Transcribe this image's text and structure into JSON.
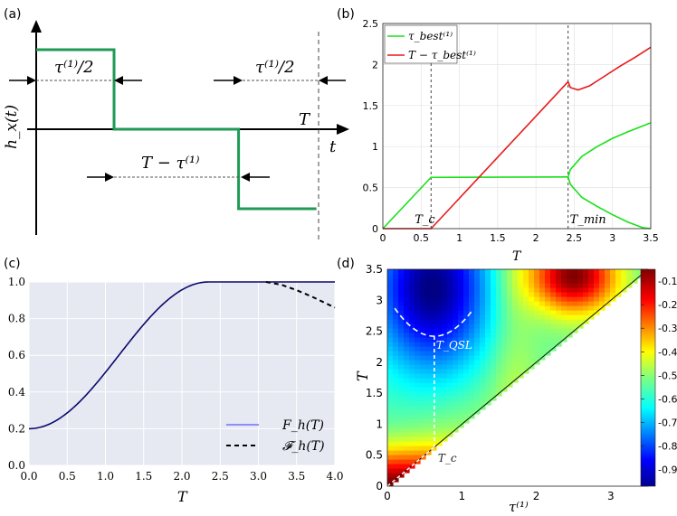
{
  "panels": {
    "a": {
      "label": "(a)"
    },
    "b": {
      "label": "(b)"
    },
    "c": {
      "label": "(c)"
    },
    "d": {
      "label": "(d)"
    }
  },
  "colors": {
    "green": "#1f9a55",
    "bright_green": "#19e019",
    "red": "#e61b1b",
    "navy": "#0a0a6a",
    "grid_bg": "#e6e8f2"
  },
  "chart_data": [
    {
      "id": "a",
      "type": "line",
      "title": "",
      "ylabel": "h_x(t)",
      "xlabel": "t",
      "annotations": {
        "top_left": "τ⁽¹⁾/2",
        "top_right": "τ⁽¹⁾/2",
        "T_label": "T",
        "middle": "T − τ⁽¹⁾"
      },
      "pulse": [
        {
          "t": 0,
          "h": 1
        },
        {
          "t": 0.5,
          "h": 1
        },
        {
          "t": 0.5,
          "h": 0
        },
        {
          "t": 1.3,
          "h": 0
        },
        {
          "t": 1.3,
          "h": -1
        },
        {
          "t": 1.8,
          "h": -1
        }
      ],
      "T_marker": 1.8
    },
    {
      "id": "b",
      "type": "line",
      "xlabel": "T",
      "ylabel": "",
      "xlim": [
        0,
        3.5
      ],
      "ylim": [
        0,
        2.5
      ],
      "xticks": [
        0,
        0.5,
        1,
        1.5,
        2,
        2.5,
        3,
        3.5
      ],
      "xtick_labels": [
        "0",
        "0.5",
        "1",
        "1.5",
        "2",
        "2.5",
        "3",
        "3.5"
      ],
      "yticks": [
        0,
        0.5,
        1,
        1.5,
        2,
        2.5
      ],
      "ytick_labels": [
        "0",
        "0.5",
        "1",
        "1.5",
        "2",
        "2.5"
      ],
      "legend": [
        "τ_best⁽¹⁾",
        "T − τ_best⁽¹⁾"
      ],
      "legend_pos": "top-left",
      "vlines": [
        {
          "x": 0.63,
          "label": "T_c"
        },
        {
          "x": 2.42,
          "label": "T_min"
        }
      ],
      "series": [
        {
          "name": "tau_best",
          "color": "green",
          "x": [
            0,
            0.63,
            2.42
          ],
          "y": [
            0,
            0.625,
            0.63
          ]
        },
        {
          "name": "tau_best_upper",
          "color": "green",
          "x": [
            2.42,
            2.45,
            2.6,
            2.8,
            3.0,
            3.2,
            3.5
          ],
          "y": [
            0.63,
            0.72,
            0.88,
            1.0,
            1.1,
            1.18,
            1.29
          ]
        },
        {
          "name": "tau_best_lower",
          "color": "green",
          "x": [
            2.42,
            2.45,
            2.6,
            2.8,
            3.0,
            3.2,
            3.4,
            3.5
          ],
          "y": [
            0.63,
            0.54,
            0.38,
            0.27,
            0.17,
            0.08,
            0.01,
            0.0
          ]
        },
        {
          "name": "T_minus_tau",
          "color": "red",
          "x": [
            0,
            0.63,
            2.42
          ],
          "y": [
            0,
            0.0,
            1.79
          ]
        },
        {
          "name": "T_minus_tau_after",
          "color": "red",
          "x": [
            2.42,
            2.45,
            2.55,
            2.7,
            2.9,
            3.1,
            3.3,
            3.5
          ],
          "y": [
            1.79,
            1.72,
            1.69,
            1.74,
            1.86,
            1.98,
            2.09,
            2.21
          ]
        }
      ]
    },
    {
      "id": "c",
      "type": "line",
      "xlabel": "T",
      "ylabel": "",
      "xlim": [
        0,
        4
      ],
      "ylim": [
        0,
        1
      ],
      "xticks": [
        0,
        0.5,
        1,
        1.5,
        2,
        2.5,
        3,
        3.5,
        4
      ],
      "xtick_labels": [
        "0.0",
        "0.5",
        "1.0",
        "1.5",
        "2.0",
        "2.5",
        "3.0",
        "3.5",
        "4.0"
      ],
      "yticks": [
        0,
        0.2,
        0.4,
        0.6,
        0.8,
        1.0
      ],
      "ytick_labels": [
        "0.0",
        "0.2",
        "0.4",
        "0.6",
        "0.8",
        "1.0"
      ],
      "legend": [
        "F_h(T)",
        "𝓕_h(T)"
      ],
      "legend_pos": "bottom-right",
      "series": [
        {
          "name": "F_h",
          "style": "solid"
        },
        {
          "name": "Fcal_h",
          "style": "dashed",
          "x": [
            3.1,
            3.3,
            3.5,
            3.7,
            3.85,
            4.0
          ],
          "y": [
            1.0,
            0.985,
            0.955,
            0.92,
            0.89,
            0.86
          ]
        }
      ]
    },
    {
      "id": "d",
      "type": "heatmap",
      "xlabel": "τ⁽¹⁾",
      "ylabel": "T",
      "xlim": [
        0,
        3.5
      ],
      "ylim": [
        0,
        3.5
      ],
      "xticks": [
        0,
        1,
        2,
        3
      ],
      "xtick_labels": [
        "0",
        "1",
        "2",
        "3"
      ],
      "yticks": [
        0,
        0.5,
        1,
        1.5,
        2,
        2.5,
        3,
        3.5
      ],
      "ytick_labels": [
        "0",
        "0.5",
        "1",
        "1.5",
        "2",
        "2.5",
        "3",
        "3.5"
      ],
      "colorbar": {
        "min": -0.97,
        "max": -0.05,
        "ticks": [
          -0.9,
          -0.8,
          -0.7,
          -0.6,
          -0.5,
          -0.4,
          -0.3,
          -0.2,
          -0.1
        ],
        "tick_labels": [
          "-0.9",
          "-0.8",
          "-0.7",
          "-0.6",
          "-0.5",
          "-0.4",
          "-0.3",
          "-0.2",
          "-0.1"
        ]
      },
      "annotations": {
        "tqsl": "T_QSL",
        "tc": "T_c"
      },
      "tqsl_point": {
        "x": 0.63,
        "y": 2.42
      },
      "tc_point": {
        "x": 0.63,
        "y": 0.63
      }
    }
  ]
}
